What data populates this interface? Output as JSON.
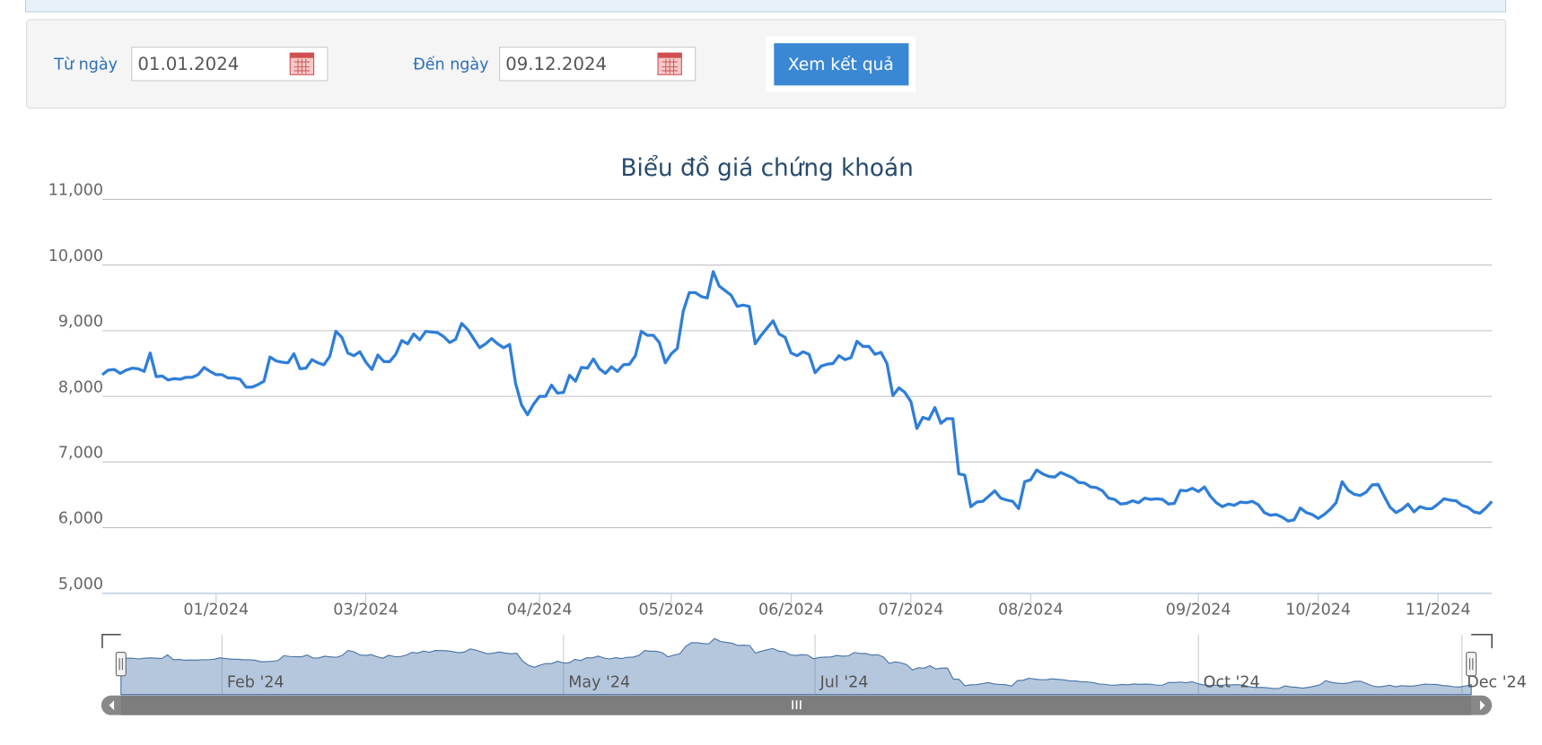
{
  "form": {
    "from_label": "Từ ngày",
    "from_value": "01.01.2024",
    "to_label": "Đến ngày",
    "to_value": "09.12.2024",
    "button": "Xem kết quả"
  },
  "chart_data": {
    "type": "line",
    "title": "Biểu đồ giá chứng khoán",
    "series": [
      {
        "color": "#2f7ed8",
        "values": [
          8330,
          8400,
          8410,
          8350,
          8400,
          8430,
          8420,
          8380,
          8660,
          8300,
          8310,
          8250,
          8270,
          8260,
          8290,
          8290,
          8330,
          8440,
          8380,
          8330,
          8330,
          8280,
          8280,
          8260,
          8140,
          8140,
          8180,
          8230,
          8600,
          8540,
          8520,
          8510,
          8650,
          8420,
          8430,
          8560,
          8510,
          8480,
          8610,
          8990,
          8900,
          8660,
          8620,
          8680,
          8520,
          8410,
          8630,
          8530,
          8530,
          8640,
          8850,
          8800,
          8950,
          8860,
          8990,
          8980,
          8970,
          8910,
          8820,
          8870,
          9110,
          9020,
          8880,
          8740,
          8800,
          8880,
          8800,
          8740,
          8790,
          8200,
          7870,
          7720,
          7880,
          8000,
          8000,
          8170,
          8050,
          8060,
          8320,
          8230,
          8440,
          8430,
          8570,
          8420,
          8350,
          8450,
          8380,
          8480,
          8490,
          8620,
          8990,
          8930,
          8930,
          8820,
          8510,
          8650,
          8730,
          9300,
          9580,
          9580,
          9520,
          9500,
          9900,
          9680,
          9610,
          9540,
          9370,
          9390,
          9370,
          8800,
          8930,
          9040,
          9150,
          8950,
          8900,
          8660,
          8620,
          8680,
          8640,
          8360,
          8460,
          8490,
          8500,
          8620,
          8560,
          8590,
          8840,
          8760,
          8760,
          8640,
          8670,
          8500,
          8010,
          8130,
          8060,
          7920,
          7510,
          7680,
          7650,
          7830,
          7590,
          7660,
          7660,
          6820,
          6800,
          6320,
          6390,
          6400,
          6480,
          6560,
          6450,
          6420,
          6400,
          6290,
          6700,
          6730,
          6880,
          6820,
          6780,
          6770,
          6840,
          6800,
          6760,
          6690,
          6680,
          6620,
          6610,
          6560,
          6450,
          6430,
          6360,
          6370,
          6410,
          6380,
          6450,
          6430,
          6440,
          6430,
          6360,
          6370,
          6570,
          6560,
          6600,
          6550,
          6620,
          6480,
          6380,
          6320,
          6360,
          6340,
          6390,
          6380,
          6400,
          6350,
          6230,
          6190,
          6200,
          6160,
          6100,
          6120,
          6300,
          6230,
          6200,
          6140,
          6200,
          6280,
          6380,
          6700,
          6570,
          6510,
          6490,
          6540,
          6650,
          6660,
          6480,
          6310,
          6230,
          6280,
          6360,
          6240,
          6320,
          6290,
          6290,
          6360,
          6440,
          6420,
          6410,
          6340,
          6310,
          6240,
          6220,
          6300,
          6400
        ]
      }
    ],
    "xlim": [
      0,
      232
    ],
    "xticks": [
      {
        "value": 19,
        "label": "01/2024"
      },
      {
        "value": 44,
        "label": "03/2024"
      },
      {
        "value": 73,
        "label": "04/2024"
      },
      {
        "value": 95,
        "label": "05/2024"
      },
      {
        "value": 115,
        "label": "06/2024"
      },
      {
        "value": 135,
        "label": "07/2024"
      },
      {
        "value": 155,
        "label": "08/2024"
      },
      {
        "value": 183,
        "label": "09/2024"
      },
      {
        "value": 203,
        "label": "10/2024"
      },
      {
        "value": 223,
        "label": "11/2024"
      }
    ],
    "ylim": [
      5000,
      11000
    ],
    "yticks": [
      {
        "value": 5000,
        "label": "5,000"
      },
      {
        "value": 6000,
        "label": "6,000"
      },
      {
        "value": 7000,
        "label": "7,000"
      },
      {
        "value": 8000,
        "label": "8,000"
      },
      {
        "value": 9000,
        "label": "9,000"
      },
      {
        "value": 10000,
        "label": "10,000"
      },
      {
        "value": 11000,
        "label": "11,000"
      }
    ],
    "grid": true,
    "navigator_xticks": [
      {
        "value": 20,
        "label": "Feb '24"
      },
      {
        "value": 77,
        "label": "May '24"
      },
      {
        "value": 119,
        "label": "Jul '24"
      },
      {
        "value": 183,
        "label": "Oct '24"
      },
      {
        "value": 227,
        "label": "Dec '24"
      }
    ]
  }
}
